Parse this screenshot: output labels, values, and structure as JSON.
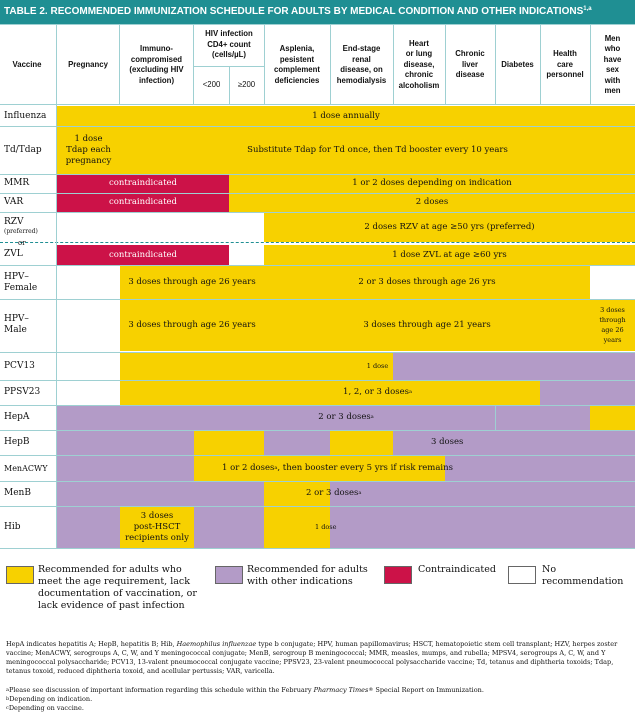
{
  "title": "TABLE 2. RECOMMENDED IMMUNIZATION SCHEDULE FOR ADULTS BY MEDICAL CONDITION AND OTHER INDICATIONS",
  "title_sup": "1,a",
  "columns": {
    "vaccine": "Vaccine",
    "pregnancy": "Pregnancy",
    "immuno": [
      "Immuno-",
      "compromised",
      "(excluding HIV",
      "infection)"
    ],
    "hiv": [
      "HIV infection",
      "CD4+ count",
      "(cells/µL)"
    ],
    "hiv_low": "<200",
    "hiv_high": "≥200",
    "asplenia": [
      "Asplenia,",
      "pesistent",
      "complement",
      "deficiencies"
    ],
    "renal": [
      "End-stage",
      "renal",
      "disease, on",
      "hemodialysis"
    ],
    "heart": [
      "Heart",
      "or lung",
      "disease,",
      "chronic",
      "alcoholism"
    ],
    "liver": [
      "Chronic",
      "liver",
      "disease"
    ],
    "diabetes": "Diabetes",
    "health": [
      "Health",
      "care",
      "personnel"
    ],
    "msm": [
      "Men",
      "who",
      "have",
      "sex",
      "with",
      "men"
    ]
  },
  "rows": {
    "influenza": "Influenza",
    "tdtdap": "Td/Tdap",
    "mmr": "MMR",
    "var": "VAR",
    "rzv": "RZV",
    "rzv_note": "(preferred)",
    "or": "or",
    "zvl": "ZVL",
    "hpv_f": [
      "HPV–",
      "Female"
    ],
    "hpv_m": [
      "HPV–",
      "Male"
    ],
    "pcv13": "PCV13",
    "ppsv23": "PPSV23",
    "hepa": "HepA",
    "hepb": "HepB",
    "menacwy": "MenACWY",
    "menb": "MenB",
    "hib": "Hib"
  },
  "cells": {
    "influenza": "1 dose annually",
    "tdap_preg": [
      "1 dose",
      "Tdap each",
      "pregnancy"
    ],
    "tdap_rest": "Substitute Tdap for Td once, then Td booster every 10 years",
    "contra": "contraindicated",
    "mmr_rest": "1 or 2 doses depending on indication",
    "var_rest": "2 doses",
    "rzv_rest": "2 doses RZV at age ≥50 yrs (preferred)",
    "zvl_rest": "1 dose ZVL at age ≥60 yrs",
    "hpv_26": "3 doses through age 26 years",
    "hpv_f_rest": "2 or 3 doses through age 26 yrs",
    "hpv_m_rest": "3 doses through age 21 years",
    "hpv_m_msm": [
      "3 doses",
      "through",
      "age 26",
      "years"
    ],
    "pcv13": "1 dose",
    "ppsv23": "1, 2, or 3 doses",
    "hepa": "2 or 3 doses",
    "hepb": "3 doses",
    "menacwy": "1 or 2 doses",
    "menacwy_rest": ", then booster every 5 yrs if risk remains",
    "menb": "2 or 3 doses",
    "hib_immuno": [
      "3 doses",
      "post-HSCT",
      "recipients only"
    ],
    "hib_asplenia": "1 dose",
    "sup_a": "a",
    "sup_b": "b",
    "sup_c": "c"
  },
  "legend": {
    "yellow": [
      "Recommended for adults who",
      "meet the age requirement, lack",
      "documentation of vaccination, or",
      "lack evidence of past infection"
    ],
    "purple": [
      "Recommended for adults",
      "with other indications"
    ],
    "red": "Contraindicated",
    "white": [
      "No",
      "recommendation"
    ]
  },
  "footnotes": {
    "abbrev_1": "HepA indicates hepatitis A; HepB, hepatitis B; Hib, ",
    "abbrev_italic": "Haemophilus influenzae",
    "abbrev_2": " type b conjugate; HPV, human papillomavirus; HSCT, hematopoietic stem cell transplant; HZV, herpes zoster vaccine; MenACWY, serogroups A, C, W, and Y meningococcal conjugate; MenB, serogroup B meningococcal; MMR, measles, mumps, and rubella; MPSV4, serogroups A, C, W, and Y meningococcal polysaccharide; PCV13, 13-valent pneumococcal conjugate vaccine; PPSV23, 23-valent pneumococcal polysaccharide vaccine; Td, tetanus and diphtheria toxoids; Tdap, tetanus toxoid, reduced diphtheria toxoid, and acellular pertussis; VAR, varicella.",
    "note_a_1": "Please see discussion of important information regarding this schedule within the February ",
    "note_a_italic": "Pharmacy Times",
    "note_a_2": " Special Report on Immunization.",
    "note_b": "Depending on indication.",
    "note_c": "Depending on vaccine."
  },
  "colors": {
    "header": "#1f8f93",
    "yellow": "#f7d100",
    "purple": "#b39bc7",
    "red": "#cc1248",
    "white": "#ffffff"
  }
}
